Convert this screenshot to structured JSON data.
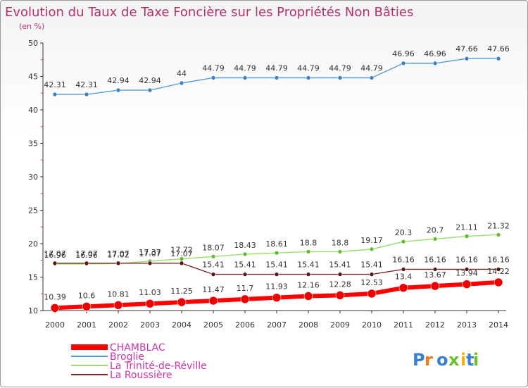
{
  "chart_data": {
    "type": "line",
    "title": "Evolution du Taux de Taxe Foncière sur les Propriétés Non Bâties",
    "subtitle": "(en %)",
    "x": [
      "2000",
      "2001",
      "2002",
      "2003",
      "2004",
      "2005",
      "2006",
      "2007",
      "2008",
      "2009",
      "2010",
      "2011",
      "2012",
      "2013",
      "2014"
    ],
    "ylim": [
      10,
      50
    ],
    "yticks": [
      "10",
      "15",
      "20",
      "25",
      "30",
      "35",
      "40",
      "45",
      "50"
    ],
    "series": [
      {
        "name": "Broglie",
        "color": "#5b9bd5",
        "marker": "#3d7fc0",
        "values": [
          42.31,
          42.31,
          42.94,
          42.94,
          44,
          44.79,
          44.79,
          44.79,
          44.79,
          44.79,
          44.79,
          46.96,
          46.96,
          47.66,
          47.66
        ],
        "labels": [
          "42.31",
          "42.31",
          "42.94",
          "42.94",
          "44",
          "44.79",
          "44.79",
          "44.79",
          "44.79",
          "44.79",
          "44.79",
          "46.96",
          "46.96",
          "47.66",
          "47.66"
        ]
      },
      {
        "name": "La Trinité-de-Réville",
        "color": "#99dd66",
        "marker": "#66bb33",
        "values": [
          16.96,
          16.96,
          17.02,
          17.37,
          17.72,
          18.07,
          18.43,
          18.61,
          18.8,
          18.8,
          19.17,
          20.3,
          20.7,
          21.11,
          21.32
        ],
        "labels": [
          "16.96",
          "16.96",
          "17.02",
          "17.37",
          "17.72",
          "18.07",
          "18.43",
          "18.61",
          "18.8",
          "18.8",
          "19.17",
          "20.3",
          "20.7",
          "21.11",
          "21.32"
        ]
      },
      {
        "name": "La Roussière",
        "color": "#7a2a2a",
        "marker": "#5a1717",
        "values": [
          17.07,
          17.07,
          17.07,
          17.07,
          17.07,
          15.41,
          15.41,
          15.41,
          15.41,
          15.41,
          15.41,
          16.16,
          16.16,
          16.16,
          16.16
        ],
        "labels": [
          "17.07",
          "17.07",
          "17.07",
          "17.07",
          "17.07",
          "15.41",
          "15.41",
          "15.41",
          "15.41",
          "15.41",
          "15.41",
          "16.16",
          "16.16",
          "16.16",
          "16.16"
        ]
      },
      {
        "name": "CHAMBLAC",
        "color": "#ff0000",
        "marker": "#ee0000",
        "values": [
          10.39,
          10.6,
          10.81,
          11.03,
          11.25,
          11.47,
          11.7,
          11.93,
          12.16,
          12.28,
          12.53,
          13.4,
          13.67,
          13.94,
          14.22
        ],
        "labels": [
          "10.39",
          "10.6",
          "10.81",
          "11.03",
          "11.25",
          "11.47",
          "11.7",
          "11.93",
          "12.16",
          "12.28",
          "12.53",
          "13.4",
          "13.67",
          "13.94",
          "14.22"
        ]
      }
    ],
    "legend": [
      {
        "name": "CHAMBLAC",
        "color": "#ff0000",
        "text_color": "#cc33aa"
      },
      {
        "name": "Broglie",
        "color": "#5b9bd5",
        "text_color": "#cc33aa"
      },
      {
        "name": "La Trinité-de-Réville",
        "color": "#99dd66",
        "text_color": "#cc33aa"
      },
      {
        "name": "La Roussière",
        "color": "#7a2a2a",
        "text_color": "#cc33aa"
      }
    ],
    "legend_position": "bottom-left",
    "grid": false
  },
  "logo": {
    "text": "Proxiti"
  }
}
